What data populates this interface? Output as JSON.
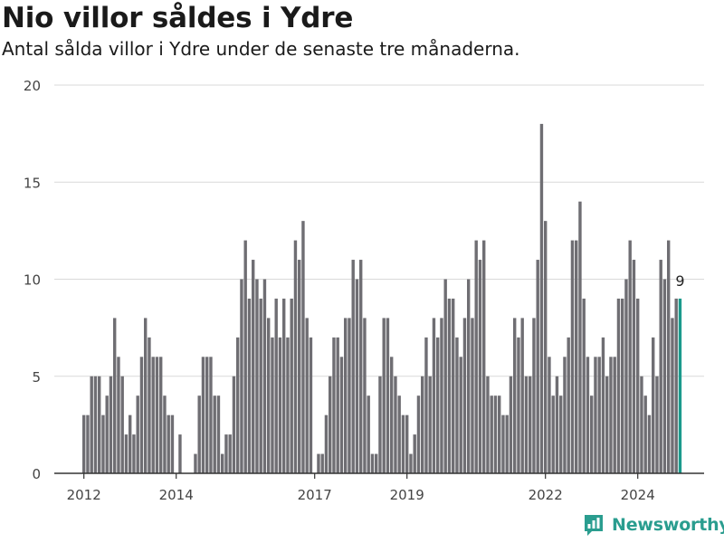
{
  "header": {
    "title": "Nio villor såldes i Ydre",
    "subtitle": "Antal sålda villor i Ydre under de senaste tre månaderna."
  },
  "brand": {
    "name": "Newsworthy",
    "color": "#2a9d8f"
  },
  "colors": {
    "bar": "#6f6e73",
    "highlight": "#1b9a8c",
    "axis": "#333333",
    "grid": "#d9d9d9"
  },
  "chart_data": {
    "type": "bar",
    "title": "Nio villor såldes i Ydre",
    "subtitle": "Antal sålda villor i Ydre under de senaste tre månaderna.",
    "xlabel": "",
    "ylabel": "",
    "ylim": [
      0,
      20
    ],
    "yticks": [
      0,
      5,
      10,
      15,
      20
    ],
    "xtick_labels": [
      "2012",
      "2014",
      "2017",
      "2019",
      "2022",
      "2024"
    ],
    "grid": true,
    "start_month": "2012-01",
    "end_month": "2024-12",
    "highlight_label": "9",
    "series": [
      {
        "values": [
          3,
          3,
          5,
          5,
          5,
          3,
          4,
          5,
          8,
          6,
          5,
          2,
          3,
          2,
          4,
          6,
          8,
          7,
          6,
          6,
          6,
          4,
          3,
          3,
          0,
          2,
          0,
          0,
          0,
          1,
          4,
          6,
          6,
          6,
          4,
          4,
          1,
          2,
          2,
          5,
          7,
          10,
          12,
          9,
          11,
          10,
          9,
          10,
          8,
          7,
          9,
          7,
          9,
          7,
          9,
          12,
          11,
          13,
          8,
          7,
          0,
          1,
          1,
          3,
          5,
          7,
          7,
          6,
          8,
          8,
          11,
          10,
          11,
          8,
          4,
          1,
          1,
          5,
          8,
          8,
          6,
          5,
          4,
          3,
          3,
          1,
          2,
          4,
          5,
          7,
          5,
          8,
          7,
          8,
          10,
          9,
          9,
          7,
          6,
          8,
          10,
          8,
          12,
          11,
          12,
          5,
          4,
          4,
          4,
          3,
          3,
          5,
          8,
          7,
          8,
          5,
          5,
          8,
          11,
          18,
          13,
          6,
          4,
          5,
          4,
          6,
          7,
          12,
          12,
          14,
          9,
          6,
          4,
          6,
          6,
          7,
          5,
          6,
          6,
          9,
          9,
          10,
          12,
          11,
          9,
          5,
          4,
          3,
          7,
          5,
          11,
          10,
          12,
          8,
          9,
          9
        ]
      }
    ]
  }
}
